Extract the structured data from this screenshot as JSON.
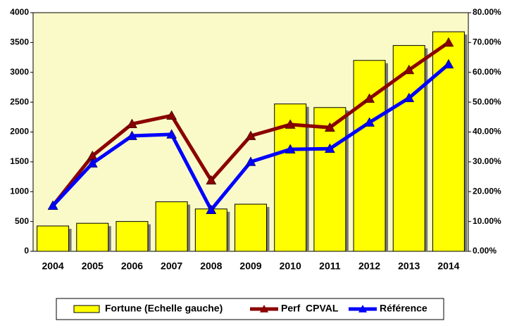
{
  "chart_data": {
    "type": "bar",
    "categories": [
      "2004",
      "2005",
      "2006",
      "2007",
      "2008",
      "2009",
      "2010",
      "2011",
      "2012",
      "2013",
      "2014"
    ],
    "series": [
      {
        "name": "Fortune (Echelle gauche)",
        "type": "bar",
        "color": "#ffff00",
        "values": [
          425,
          470,
          500,
          830,
          710,
          790,
          2470,
          2410,
          3200,
          3450,
          3680
        ]
      },
      {
        "name": "Perf  CPVAL",
        "type": "line",
        "axis": "y2",
        "color": "#8b0000",
        "values": [
          15.3,
          32,
          42.7,
          45.5,
          23.8,
          38.7,
          42.5,
          41.5,
          51.2,
          60.8,
          70
        ]
      },
      {
        "name": "Référence",
        "type": "line",
        "axis": "y2",
        "color": "#0000ff",
        "values": [
          15.3,
          29.5,
          38.7,
          39.2,
          13.9,
          30,
          34.2,
          34.4,
          43.2,
          51.4,
          62.7
        ]
      }
    ],
    "ylim": [
      0,
      4000
    ],
    "yticks": [
      0,
      500,
      1000,
      1500,
      2000,
      2500,
      3000,
      3500,
      4000
    ],
    "y2lim": [
      0,
      80
    ],
    "y2ticks": [
      {
        "value": 0,
        "label": "0.00%"
      },
      {
        "value": 10,
        "label": "10.00%"
      },
      {
        "value": 20,
        "label": "20.00%"
      },
      {
        "value": 30,
        "label": "30.00%"
      },
      {
        "value": 40,
        "label": "40.00%"
      },
      {
        "value": 50,
        "label": "50.00%"
      },
      {
        "value": 60,
        "label": "60.00%"
      },
      {
        "value": 70,
        "label": "70.00%"
      },
      {
        "value": 80,
        "label": "80.00%"
      }
    ],
    "plot_background": "#fafac8",
    "legend": "bottom"
  }
}
